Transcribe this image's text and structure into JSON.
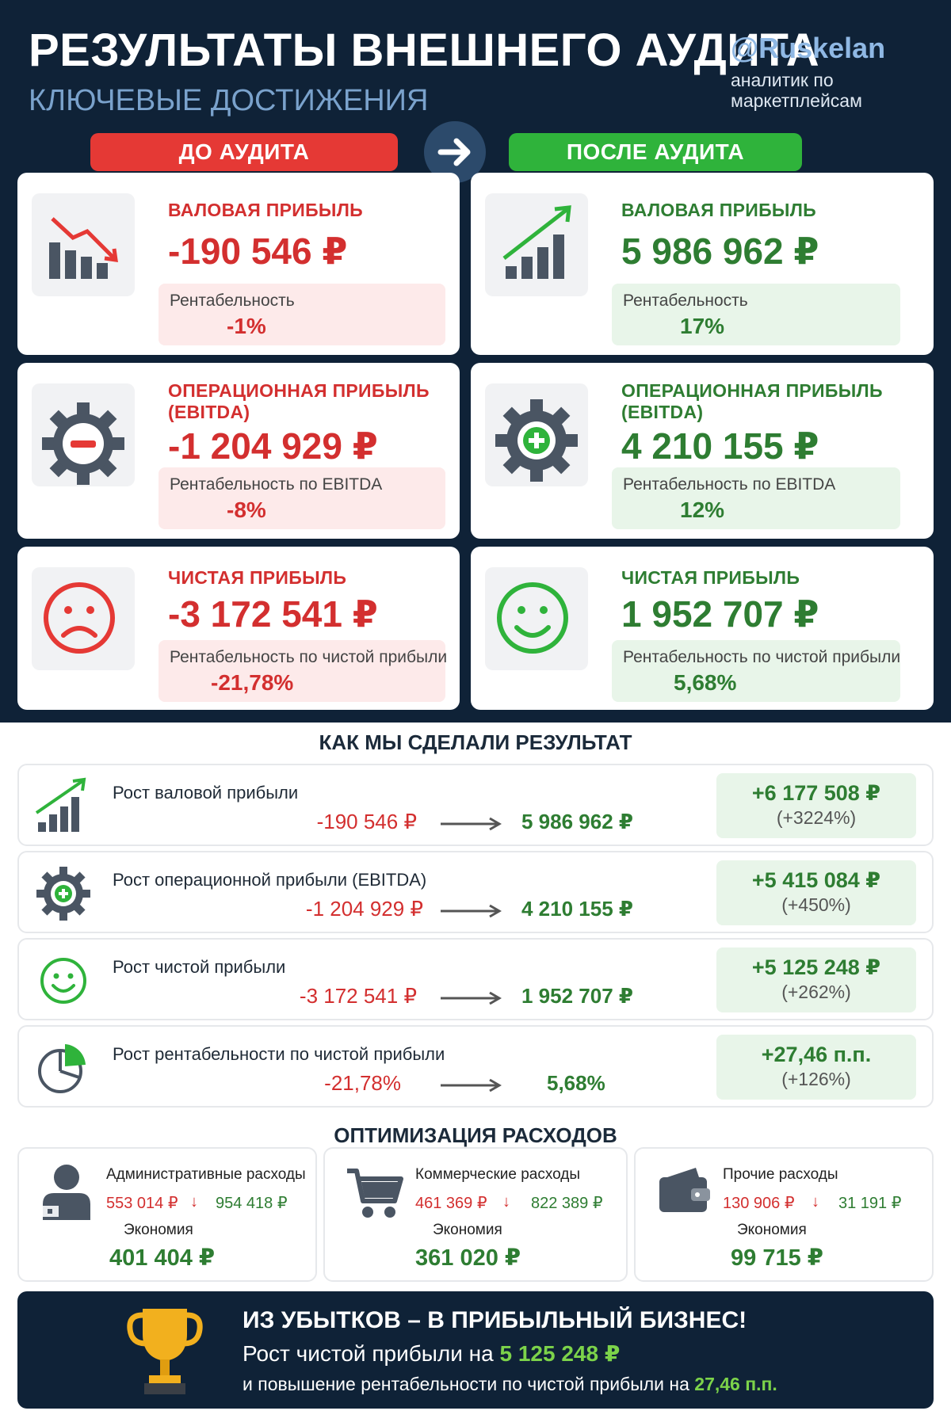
{
  "header": {
    "title": "РЕЗУЛЬТАТЫ ВНЕШНЕГО АУДИТА",
    "subtitle": "КЛЮЧЕВЫЕ ДОСТИЖЕНИЯ",
    "handle": "@Ruskelan",
    "handle_sub": "аналитик по маркетплейсам"
  },
  "labels": {
    "before": "ДО АУДИТА",
    "after": "ПОСЛЕ АУДИТА"
  },
  "before": {
    "gross": {
      "label": "ВАЛОВАЯ ПРИБЫЛЬ",
      "value": "-190 546 ₽",
      "metric_label": "Рентабельность",
      "metric_value": "-1%"
    },
    "ebitda": {
      "label_1": "ОПЕРАЦИОННАЯ ПРИБЫЛЬ",
      "label_2": "(EBITDA)",
      "value": "-1 204 929 ₽",
      "metric_label": "Рентабельность по EBITDA",
      "metric_value": "-8%"
    },
    "net": {
      "label": "ЧИСТАЯ ПРИБЫЛЬ",
      "value": "-3 172 541 ₽",
      "metric_label": "Рентабельность по чистой прибыли",
      "metric_value": "-21,78%"
    }
  },
  "after": {
    "gross": {
      "label": "ВАЛОВАЯ ПРИБЫЛЬ",
      "value": "5 986 962 ₽",
      "metric_label": "Рентабельность",
      "metric_value": "17%"
    },
    "ebitda": {
      "label_1": "ОПЕРАЦИОННАЯ ПРИБЫЛЬ",
      "label_2": "(EBITDA)",
      "value": "4 210 155 ₽",
      "metric_label": "Рентабельность по EBITDA",
      "metric_value": "12%"
    },
    "net": {
      "label": "ЧИСТАЯ ПРИБЫЛЬ",
      "value": "1 952 707 ₽",
      "metric_label": "Рентабельность по чистой прибыли",
      "metric_value": "5,68%"
    }
  },
  "how": {
    "title": "КАК МЫ СДЕЛАЛИ РЕЗУЛЬТАТ",
    "rows": [
      {
        "label": "Рост валовой прибыли",
        "from": "-190 546 ₽",
        "to": "5 986 962 ₽",
        "delta": "+6 177 508 ₽",
        "pct": "(+3224%)",
        "icon": "growth-chart-icon"
      },
      {
        "label": "Рост операционной прибыли (EBITDA)",
        "from": "-1 204 929 ₽",
        "to": "4 210 155 ₽",
        "delta": "+5 415 084 ₽",
        "pct": "(+450%)",
        "icon": "gear-plus-icon"
      },
      {
        "label": "Рост чистой прибыли",
        "from": "-3 172 541 ₽",
        "to": "1 952 707 ₽",
        "delta": "+5 125 248 ₽",
        "pct": "(+262%)",
        "icon": "smile-icon"
      },
      {
        "label": "Рост рентабельности по чистой прибыли",
        "from": "-21,78%",
        "to": "5,68%",
        "delta": "+27,46 п.п.",
        "pct": "(+126%)",
        "icon": "pie-chart-icon"
      }
    ]
  },
  "expenses": {
    "title": "ОПТИМИЗАЦИЯ РАСХОДОВ",
    "economy_label": "Экономия",
    "items": [
      {
        "title": "Административные расходы",
        "from": "553 014 ₽",
        "to": "954 418 ₽",
        "saving": "401 404 ₽",
        "icon": "person-icon"
      },
      {
        "title": "Коммерческие расходы",
        "from": "461 369 ₽",
        "to": "822 389 ₽",
        "saving": "361 020 ₽",
        "icon": "cart-icon"
      },
      {
        "title": "Прочие расходы",
        "from": "130 906 ₽",
        "to": "31 191 ₽",
        "saving": "99 715 ₽",
        "icon": "wallet-icon"
      }
    ]
  },
  "banner": {
    "line1": "ИЗ УБЫТКОВ – В ПРИБЫЛЬНЫЙ БИЗНЕС!",
    "line2_text": "Рост чистой прибыли на",
    "line2_value": "5 125 248 ₽",
    "line3_text": "и повышение рентабельности по чистой прибыли на",
    "line3_value": "27,46 п.п."
  },
  "colors": {
    "navy": "#0f2237",
    "red": "#d32f2f",
    "green": "#2e7d32",
    "pill_red": "#e53935",
    "pill_green": "#2fb33b"
  }
}
